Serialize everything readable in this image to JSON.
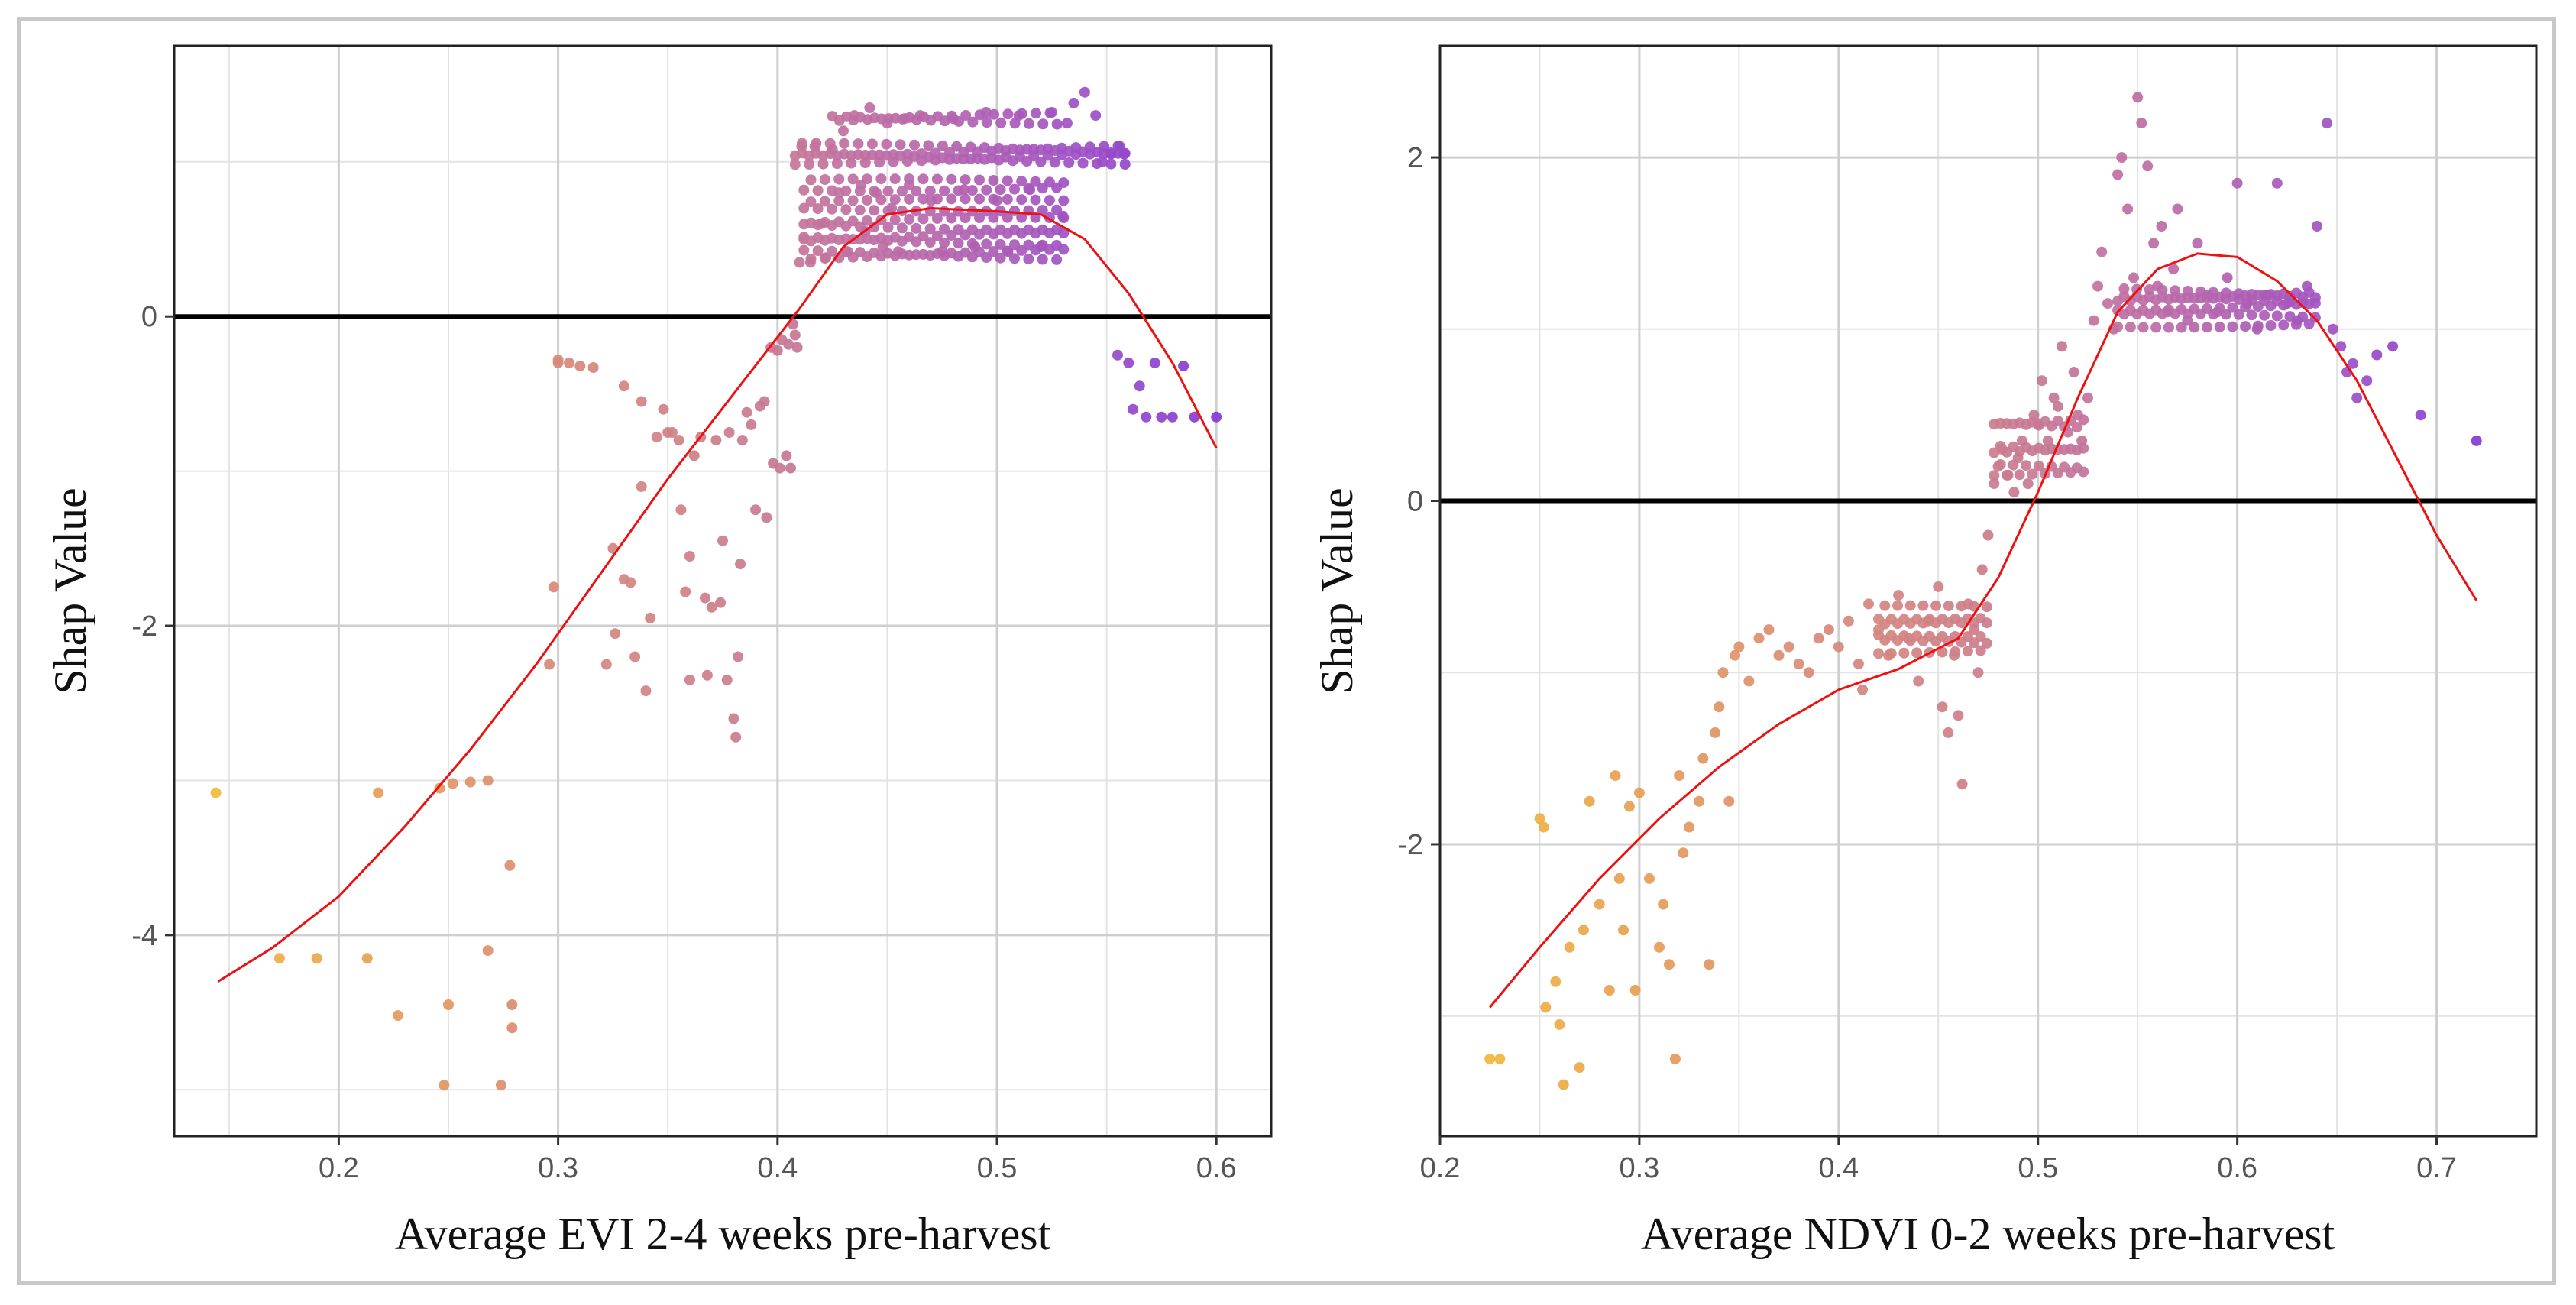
{
  "chart_data": [
    {
      "type": "scatter",
      "title": "",
      "xlabel": "Average EVI 2-4 weeks pre-harvest",
      "ylabel": "Shap Value",
      "xlim": [
        0.125,
        0.625
      ],
      "ylim": [
        -5.3,
        1.75
      ],
      "x_ticks": [
        0.2,
        0.3,
        0.4,
        0.5,
        0.6
      ],
      "x_tick_labels": [
        "0.2",
        "0.3",
        "0.4",
        "0.5",
        "0.6"
      ],
      "y_ticks": [
        -4,
        -2,
        0
      ],
      "y_tick_labels": [
        "-4",
        "-2",
        "0"
      ],
      "reference_line_y": 0,
      "color_scale": [
        "#f5c033",
        "#e8a050",
        "#d98a76",
        "#cc7d8c",
        "#bb6aa8",
        "#9c4fc6",
        "#7a2fd8"
      ],
      "points": [
        [
          0.144,
          -3.08
        ],
        [
          0.173,
          -4.15
        ],
        [
          0.19,
          -4.15
        ],
        [
          0.213,
          -4.15
        ],
        [
          0.218,
          -3.08
        ],
        [
          0.227,
          -4.52
        ],
        [
          0.246,
          -3.05
        ],
        [
          0.248,
          -4.97
        ],
        [
          0.25,
          -4.45
        ],
        [
          0.252,
          -3.02
        ],
        [
          0.26,
          -3.01
        ],
        [
          0.268,
          -3.0
        ],
        [
          0.268,
          -4.1
        ],
        [
          0.274,
          -4.97
        ],
        [
          0.278,
          -3.55
        ],
        [
          0.279,
          -4.45
        ],
        [
          0.279,
          -4.6
        ],
        [
          0.296,
          -2.25
        ],
        [
          0.298,
          -1.75
        ],
        [
          0.3,
          -0.3
        ],
        [
          0.3,
          -0.28
        ],
        [
          0.305,
          -0.3
        ],
        [
          0.31,
          -0.32
        ],
        [
          0.316,
          -0.33
        ],
        [
          0.322,
          -2.25
        ],
        [
          0.325,
          -1.5
        ],
        [
          0.326,
          -2.05
        ],
        [
          0.33,
          -0.45
        ],
        [
          0.33,
          -1.7
        ],
        [
          0.333,
          -1.72
        ],
        [
          0.335,
          -2.2
        ],
        [
          0.338,
          -0.55
        ],
        [
          0.338,
          -1.1
        ],
        [
          0.34,
          -2.42
        ],
        [
          0.342,
          -1.95
        ],
        [
          0.345,
          -0.78
        ],
        [
          0.348,
          -0.6
        ],
        [
          0.35,
          -0.75
        ],
        [
          0.352,
          -0.75
        ],
        [
          0.355,
          -0.8
        ],
        [
          0.356,
          -1.25
        ],
        [
          0.358,
          -1.78
        ],
        [
          0.36,
          -1.55
        ],
        [
          0.36,
          -2.35
        ],
        [
          0.362,
          -0.9
        ],
        [
          0.365,
          -0.78
        ],
        [
          0.367,
          -1.82
        ],
        [
          0.368,
          -2.32
        ],
        [
          0.37,
          -1.88
        ],
        [
          0.372,
          -0.8
        ],
        [
          0.374,
          -1.85
        ],
        [
          0.375,
          -1.45
        ],
        [
          0.377,
          -2.35
        ],
        [
          0.378,
          -0.75
        ],
        [
          0.38,
          -2.6
        ],
        [
          0.381,
          -2.72
        ],
        [
          0.382,
          -2.2
        ],
        [
          0.383,
          -1.6
        ],
        [
          0.384,
          -0.8
        ],
        [
          0.386,
          -0.62
        ],
        [
          0.388,
          -0.7
        ],
        [
          0.39,
          -1.25
        ],
        [
          0.392,
          -0.58
        ],
        [
          0.394,
          -0.55
        ],
        [
          0.395,
          -1.3
        ],
        [
          0.397,
          -0.2
        ],
        [
          0.398,
          -0.95
        ],
        [
          0.4,
          -0.22
        ],
        [
          0.401,
          -0.98
        ],
        [
          0.402,
          -0.15
        ],
        [
          0.404,
          -0.9
        ],
        [
          0.405,
          -0.18
        ],
        [
          0.406,
          -0.98
        ],
        [
          0.407,
          -0.05
        ],
        [
          0.408,
          -0.12
        ],
        [
          0.409,
          -0.2
        ],
        [
          0.41,
          0.35
        ],
        [
          0.411,
          1.1
        ],
        [
          0.412,
          0.5
        ],
        [
          0.415,
          0.35
        ],
        [
          0.417,
          1.1
        ],
        [
          0.42,
          0.6
        ],
        [
          0.422,
          0.38
        ],
        [
          0.425,
          1.08
        ],
        [
          0.428,
          0.8
        ],
        [
          0.43,
          1.2
        ],
        [
          0.432,
          0.42
        ],
        [
          0.435,
          1.3
        ],
        [
          0.438,
          0.85
        ],
        [
          0.44,
          0.55
        ],
        [
          0.442,
          1.35
        ],
        [
          0.445,
          0.8
        ],
        [
          0.448,
          0.45
        ],
        [
          0.45,
          1.25
        ],
        [
          0.452,
          0.7
        ],
        [
          0.455,
          0.42
        ],
        [
          0.458,
          1.28
        ],
        [
          0.46,
          0.85
        ],
        [
          0.465,
          1.3
        ],
        [
          0.47,
          0.75
        ],
        [
          0.475,
          0.42
        ],
        [
          0.48,
          1.28
        ],
        [
          0.485,
          0.82
        ],
        [
          0.49,
          0.45
        ],
        [
          0.495,
          1.32
        ],
        [
          0.5,
          0.75
        ],
        [
          0.505,
          0.42
        ],
        [
          0.51,
          1.3
        ],
        [
          0.515,
          0.82
        ],
        [
          0.52,
          0.45
        ],
        [
          0.525,
          1.32
        ],
        [
          0.53,
          0.65
        ],
        [
          0.532,
          1.25
        ],
        [
          0.535,
          1.38
        ],
        [
          0.54,
          1.45
        ],
        [
          0.545,
          1.3
        ],
        [
          0.548,
          1.0
        ],
        [
          0.552,
          1.05
        ],
        [
          0.556,
          1.1
        ],
        [
          0.558,
          1.05
        ],
        [
          0.555,
          -0.25
        ],
        [
          0.56,
          -0.3
        ],
        [
          0.562,
          -0.6
        ],
        [
          0.565,
          -0.45
        ],
        [
          0.568,
          -0.65
        ],
        [
          0.572,
          -0.3
        ],
        [
          0.575,
          -0.65
        ],
        [
          0.58,
          -0.65
        ],
        [
          0.585,
          -0.32
        ],
        [
          0.59,
          -0.65
        ],
        [
          0.6,
          -0.65
        ]
      ],
      "point_bands": [
        {
          "x_start": 0.412,
          "x_end": 0.532,
          "y_values": [
            0.4,
            0.5,
            0.6,
            0.72,
            0.85
          ]
        },
        {
          "x_start": 0.425,
          "x_end": 0.53,
          "y_values": [
            1.28
          ]
        },
        {
          "x_start": 0.408,
          "x_end": 0.56,
          "y_values": [
            1.08,
            1.02
          ]
        }
      ],
      "fit_line": [
        [
          0.145,
          -4.3
        ],
        [
          0.17,
          -4.08
        ],
        [
          0.2,
          -3.75
        ],
        [
          0.23,
          -3.3
        ],
        [
          0.26,
          -2.8
        ],
        [
          0.29,
          -2.25
        ],
        [
          0.32,
          -1.65
        ],
        [
          0.35,
          -1.05
        ],
        [
          0.38,
          -0.5
        ],
        [
          0.41,
          0.05
        ],
        [
          0.43,
          0.45
        ],
        [
          0.45,
          0.66
        ],
        [
          0.47,
          0.7
        ],
        [
          0.5,
          0.68
        ],
        [
          0.52,
          0.66
        ],
        [
          0.54,
          0.5
        ],
        [
          0.56,
          0.15
        ],
        [
          0.58,
          -0.3
        ],
        [
          0.6,
          -0.85
        ]
      ]
    },
    {
      "type": "scatter",
      "title": "",
      "xlabel": "Average NDVI 0-2 weeks pre-harvest",
      "ylabel": "Shap Value",
      "xlim": [
        0.2,
        0.75
      ],
      "ylim": [
        -3.7,
        2.65
      ],
      "x_ticks": [
        0.2,
        0.3,
        0.4,
        0.5,
        0.6,
        0.7
      ],
      "x_tick_labels": [
        "0.2",
        "0.3",
        "0.4",
        "0.5",
        "0.6",
        "0.7"
      ],
      "y_ticks": [
        -2,
        0,
        2
      ],
      "y_tick_labels": [
        "-2",
        "0",
        "2"
      ],
      "reference_line_y": 0,
      "color_scale": [
        "#f5c033",
        "#e8a050",
        "#d98a76",
        "#cc7d8c",
        "#bb6aa8",
        "#9c4fc6",
        "#7a2fd8"
      ],
      "points": [
        [
          0.225,
          -3.25
        ],
        [
          0.23,
          -3.25
        ],
        [
          0.25,
          -1.85
        ],
        [
          0.252,
          -1.9
        ],
        [
          0.253,
          -2.95
        ],
        [
          0.258,
          -2.8
        ],
        [
          0.26,
          -3.05
        ],
        [
          0.262,
          -3.4
        ],
        [
          0.265,
          -2.6
        ],
        [
          0.27,
          -3.3
        ],
        [
          0.272,
          -2.5
        ],
        [
          0.275,
          -1.75
        ],
        [
          0.28,
          -2.35
        ],
        [
          0.285,
          -2.85
        ],
        [
          0.288,
          -1.6
        ],
        [
          0.29,
          -2.2
        ],
        [
          0.292,
          -2.5
        ],
        [
          0.295,
          -1.78
        ],
        [
          0.298,
          -2.85
        ],
        [
          0.3,
          -1.7
        ],
        [
          0.305,
          -2.2
        ],
        [
          0.31,
          -2.6
        ],
        [
          0.312,
          -2.35
        ],
        [
          0.315,
          -2.7
        ],
        [
          0.318,
          -3.25
        ],
        [
          0.32,
          -1.6
        ],
        [
          0.322,
          -2.05
        ],
        [
          0.325,
          -1.9
        ],
        [
          0.33,
          -1.75
        ],
        [
          0.332,
          -1.5
        ],
        [
          0.335,
          -2.7
        ],
        [
          0.338,
          -1.35
        ],
        [
          0.34,
          -1.2
        ],
        [
          0.342,
          -1.0
        ],
        [
          0.345,
          -1.75
        ],
        [
          0.348,
          -0.9
        ],
        [
          0.35,
          -0.85
        ],
        [
          0.355,
          -1.05
        ],
        [
          0.36,
          -0.8
        ],
        [
          0.365,
          -0.75
        ],
        [
          0.37,
          -0.9
        ],
        [
          0.375,
          -0.85
        ],
        [
          0.38,
          -0.95
        ],
        [
          0.385,
          -1.0
        ],
        [
          0.39,
          -0.8
        ],
        [
          0.395,
          -0.75
        ],
        [
          0.4,
          -0.85
        ],
        [
          0.405,
          -0.7
        ],
        [
          0.41,
          -0.95
        ],
        [
          0.412,
          -1.1
        ],
        [
          0.415,
          -0.6
        ],
        [
          0.42,
          -0.75
        ],
        [
          0.425,
          -0.9
        ],
        [
          0.43,
          -0.55
        ],
        [
          0.435,
          -0.8
        ],
        [
          0.44,
          -1.05
        ],
        [
          0.445,
          -0.7
        ],
        [
          0.45,
          -0.5
        ],
        [
          0.452,
          -1.2
        ],
        [
          0.455,
          -1.35
        ],
        [
          0.458,
          -0.9
        ],
        [
          0.46,
          -1.25
        ],
        [
          0.462,
          -1.65
        ],
        [
          0.465,
          -0.6
        ],
        [
          0.468,
          -0.75
        ],
        [
          0.47,
          -1.0
        ],
        [
          0.472,
          -0.4
        ],
        [
          0.475,
          -0.2
        ],
        [
          0.478,
          0.1
        ],
        [
          0.48,
          0.2
        ],
        [
          0.482,
          0.3
        ],
        [
          0.485,
          0.15
        ],
        [
          0.488,
          0.05
        ],
        [
          0.49,
          0.25
        ],
        [
          0.492,
          0.35
        ],
        [
          0.495,
          0.1
        ],
        [
          0.498,
          0.5
        ],
        [
          0.5,
          0.45
        ],
        [
          0.502,
          0.7
        ],
        [
          0.505,
          0.35
        ],
        [
          0.508,
          0.6
        ],
        [
          0.51,
          0.55
        ],
        [
          0.512,
          0.9
        ],
        [
          0.515,
          0.4
        ],
        [
          0.518,
          0.75
        ],
        [
          0.52,
          0.5
        ],
        [
          0.522,
          0.35
        ],
        [
          0.525,
          0.6
        ],
        [
          0.528,
          1.05
        ],
        [
          0.53,
          1.25
        ],
        [
          0.532,
          1.45
        ],
        [
          0.535,
          1.15
        ],
        [
          0.538,
          1.0
        ],
        [
          0.54,
          1.9
        ],
        [
          0.542,
          2.0
        ],
        [
          0.545,
          1.7
        ],
        [
          0.548,
          1.3
        ],
        [
          0.55,
          2.35
        ],
        [
          0.552,
          2.2
        ],
        [
          0.555,
          1.95
        ],
        [
          0.558,
          1.5
        ],
        [
          0.56,
          1.25
        ],
        [
          0.562,
          1.6
        ],
        [
          0.565,
          1.1
        ],
        [
          0.568,
          1.35
        ],
        [
          0.57,
          1.7
        ],
        [
          0.575,
          1.05
        ],
        [
          0.58,
          1.5
        ],
        [
          0.585,
          1.2
        ],
        [
          0.59,
          1.1
        ],
        [
          0.595,
          1.3
        ],
        [
          0.6,
          1.85
        ],
        [
          0.605,
          1.15
        ],
        [
          0.61,
          1.0
        ],
        [
          0.615,
          1.2
        ],
        [
          0.62,
          1.85
        ],
        [
          0.625,
          1.15
        ],
        [
          0.63,
          1.05
        ],
        [
          0.635,
          1.25
        ],
        [
          0.64,
          1.6
        ],
        [
          0.645,
          2.2
        ],
        [
          0.648,
          1.0
        ],
        [
          0.652,
          0.9
        ],
        [
          0.655,
          0.75
        ],
        [
          0.658,
          0.8
        ],
        [
          0.66,
          0.6
        ],
        [
          0.665,
          0.7
        ],
        [
          0.67,
          0.85
        ],
        [
          0.678,
          0.9
        ],
        [
          0.692,
          0.5
        ],
        [
          0.72,
          0.35
        ]
      ],
      "point_bands": [
        {
          "x_start": 0.42,
          "x_end": 0.475,
          "y_values": [
            -0.75,
            -0.65,
            -0.85
          ]
        },
        {
          "x_start": 0.478,
          "x_end": 0.525,
          "y_values": [
            0.18,
            0.3,
            0.45
          ]
        },
        {
          "x_start": 0.54,
          "x_end": 0.64,
          "y_values": [
            1.05,
            1.15,
            1.2
          ]
        }
      ],
      "fit_line": [
        [
          0.225,
          -2.95
        ],
        [
          0.25,
          -2.6
        ],
        [
          0.28,
          -2.2
        ],
        [
          0.31,
          -1.85
        ],
        [
          0.34,
          -1.55
        ],
        [
          0.37,
          -1.3
        ],
        [
          0.4,
          -1.1
        ],
        [
          0.43,
          -0.98
        ],
        [
          0.46,
          -0.8
        ],
        [
          0.48,
          -0.45
        ],
        [
          0.5,
          0.05
        ],
        [
          0.52,
          0.6
        ],
        [
          0.54,
          1.1
        ],
        [
          0.56,
          1.35
        ],
        [
          0.58,
          1.44
        ],
        [
          0.6,
          1.42
        ],
        [
          0.62,
          1.28
        ],
        [
          0.64,
          1.05
        ],
        [
          0.66,
          0.7
        ],
        [
          0.68,
          0.25
        ],
        [
          0.7,
          -0.2
        ],
        [
          0.72,
          -0.58
        ]
      ]
    }
  ]
}
